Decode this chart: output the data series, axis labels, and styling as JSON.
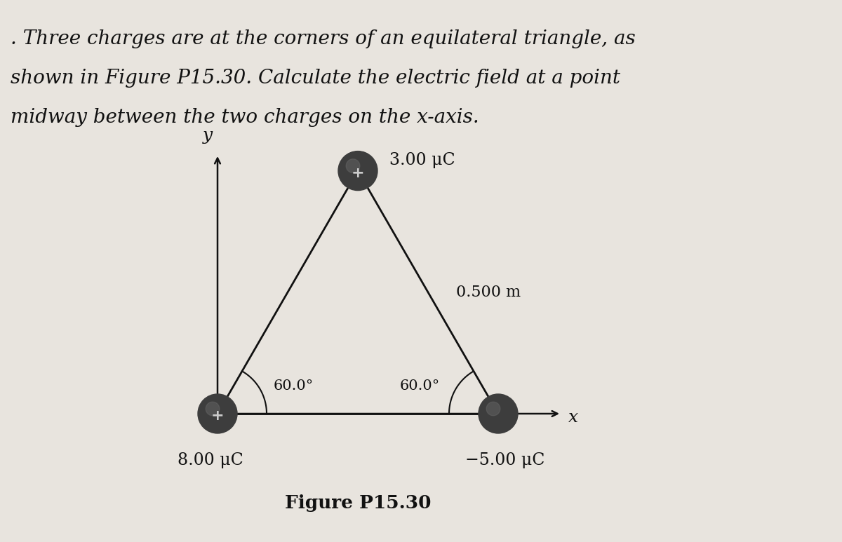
{
  "title_line1": ". Three charges are at the corners of an equilateral triangle, as",
  "title_line2": "shown in Figure P15.30. Calculate the electric field at a point",
  "title_line3": "midway between the two charges on the x-axis.",
  "figure_label": "Figure P15.30",
  "charge_top": "3.00 μC",
  "charge_left": "8.00 μC",
  "charge_right": "−5.00 μC",
  "side_label": "0.500 m",
  "angle_left": "60.0°",
  "angle_right": "60.0°",
  "bg_color": "#e8e4de",
  "triangle_color": "#111111",
  "ball_color": "#4a4a4a",
  "axis_color": "#111111",
  "text_color": "#111111",
  "figsize": [
    12.0,
    7.73
  ],
  "xl": 0.0,
  "yl": 0.0,
  "xr": 1.0,
  "yr": 0.0,
  "xt": 0.5,
  "yt": 0.866
}
